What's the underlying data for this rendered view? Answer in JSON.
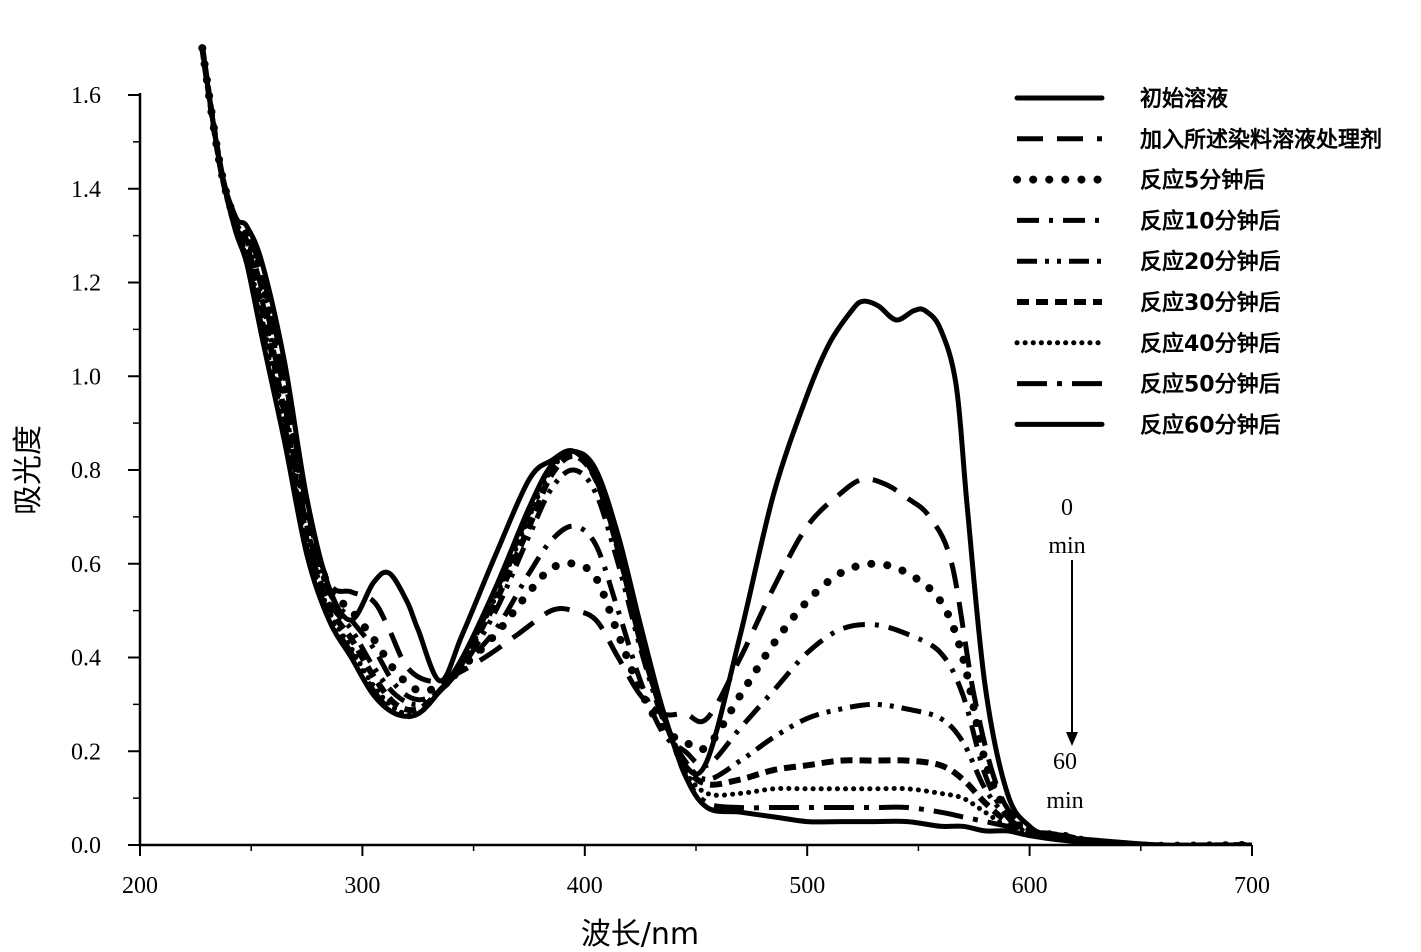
{
  "chart_data": {
    "type": "line",
    "title": "",
    "xlabel": "波长/nm",
    "ylabel": "吸光度",
    "xlim": [
      200,
      700
    ],
    "ylim": [
      0.0,
      1.6
    ],
    "xticks": [
      "200",
      "300",
      "400",
      "500",
      "600",
      "700"
    ],
    "yticks": [
      "0.0",
      "0.2",
      "0.4",
      "0.6",
      "0.8",
      "1.0",
      "1.2",
      "1.4",
      "1.6"
    ],
    "grid": false,
    "legend_position": "top-right",
    "annotations": {
      "top_value": "0",
      "top_unit": "min",
      "bottom_value": "60",
      "bottom_unit": "min"
    },
    "series": [
      {
        "name": "初始溶液",
        "style": "solid",
        "x": [
          228,
          236,
          243,
          248,
          255,
          265,
          275,
          285,
          295,
          305,
          312,
          320,
          325,
          335,
          345,
          360,
          375,
          385,
          395,
          405,
          415,
          425,
          435,
          445,
          455,
          470,
          485,
          500,
          510,
          520,
          525,
          532,
          540,
          548,
          553,
          560,
          567,
          572,
          580,
          590,
          600,
          610,
          630,
          660,
          700
        ],
        "y": [
          1.7,
          1.45,
          1.34,
          1.32,
          1.24,
          1.03,
          0.74,
          0.55,
          0.48,
          0.56,
          0.58,
          0.52,
          0.46,
          0.35,
          0.45,
          0.62,
          0.78,
          0.82,
          0.84,
          0.78,
          0.63,
          0.43,
          0.28,
          0.17,
          0.18,
          0.45,
          0.75,
          0.96,
          1.07,
          1.14,
          1.16,
          1.15,
          1.12,
          1.14,
          1.14,
          1.1,
          0.98,
          0.72,
          0.34,
          0.11,
          0.04,
          0.02,
          0.01,
          0.0,
          0.0
        ]
      },
      {
        "name": "加入所述染料溶液处理剂",
        "style": "dash",
        "x": [
          228,
          236,
          243,
          248,
          255,
          265,
          275,
          285,
          295,
          305,
          312,
          320,
          330,
          340,
          355,
          370,
          385,
          395,
          405,
          415,
          425,
          435,
          445,
          455,
          470,
          485,
          500,
          515,
          525,
          535,
          545,
          555,
          565,
          575,
          585,
          595,
          610,
          640,
          700
        ],
        "y": [
          1.7,
          1.45,
          1.33,
          1.3,
          1.22,
          1.0,
          0.72,
          0.56,
          0.54,
          0.52,
          0.46,
          0.38,
          0.35,
          0.36,
          0.4,
          0.45,
          0.5,
          0.5,
          0.48,
          0.4,
          0.32,
          0.28,
          0.28,
          0.27,
          0.4,
          0.55,
          0.68,
          0.75,
          0.78,
          0.77,
          0.74,
          0.7,
          0.6,
          0.32,
          0.13,
          0.05,
          0.02,
          0.0,
          0.0
        ]
      },
      {
        "name": "反应5分钟后",
        "style": "dot-large",
        "x": [
          228,
          236,
          243,
          248,
          255,
          265,
          275,
          285,
          295,
          305,
          315,
          325,
          335,
          345,
          360,
          375,
          385,
          395,
          405,
          415,
          425,
          435,
          445,
          455,
          470,
          485,
          500,
          515,
          530,
          545,
          560,
          570,
          580,
          590,
          600,
          615,
          640,
          700
        ],
        "y": [
          1.7,
          1.45,
          1.33,
          1.3,
          1.2,
          0.98,
          0.7,
          0.55,
          0.5,
          0.44,
          0.37,
          0.33,
          0.34,
          0.38,
          0.45,
          0.54,
          0.59,
          0.6,
          0.57,
          0.45,
          0.33,
          0.25,
          0.22,
          0.21,
          0.32,
          0.43,
          0.52,
          0.58,
          0.6,
          0.58,
          0.52,
          0.4,
          0.18,
          0.07,
          0.03,
          0.02,
          0.0,
          0.0
        ]
      },
      {
        "name": "反应10分钟后",
        "style": "dash-dot",
        "x": [
          228,
          236,
          243,
          248,
          255,
          265,
          275,
          285,
          295,
          305,
          315,
          325,
          335,
          345,
          360,
          375,
          385,
          395,
          405,
          415,
          425,
          435,
          445,
          455,
          470,
          485,
          500,
          515,
          530,
          545,
          560,
          570,
          580,
          590,
          600,
          615,
          640,
          700
        ],
        "y": [
          1.7,
          1.45,
          1.32,
          1.29,
          1.18,
          0.96,
          0.68,
          0.54,
          0.48,
          0.42,
          0.34,
          0.31,
          0.33,
          0.38,
          0.46,
          0.58,
          0.65,
          0.68,
          0.64,
          0.5,
          0.35,
          0.24,
          0.2,
          0.17,
          0.25,
          0.33,
          0.41,
          0.46,
          0.47,
          0.45,
          0.41,
          0.32,
          0.15,
          0.06,
          0.03,
          0.02,
          0.0,
          0.0
        ]
      },
      {
        "name": "反应20分钟后",
        "style": "dash-dot-dot",
        "x": [
          228,
          236,
          243,
          248,
          255,
          265,
          275,
          285,
          295,
          305,
          315,
          325,
          335,
          345,
          360,
          375,
          385,
          395,
          405,
          415,
          425,
          435,
          445,
          455,
          470,
          485,
          500,
          515,
          530,
          545,
          560,
          570,
          580,
          590,
          600,
          615,
          640,
          700
        ],
        "y": [
          1.7,
          1.45,
          1.32,
          1.28,
          1.16,
          0.94,
          0.66,
          0.52,
          0.46,
          0.38,
          0.32,
          0.3,
          0.33,
          0.38,
          0.5,
          0.66,
          0.76,
          0.8,
          0.75,
          0.6,
          0.42,
          0.27,
          0.18,
          0.14,
          0.18,
          0.23,
          0.27,
          0.29,
          0.3,
          0.29,
          0.27,
          0.22,
          0.12,
          0.06,
          0.03,
          0.02,
          0.0,
          0.0
        ]
      },
      {
        "name": "反应30分钟后",
        "style": "dash-short",
        "x": [
          228,
          236,
          243,
          248,
          255,
          265,
          275,
          285,
          295,
          305,
          315,
          325,
          335,
          345,
          360,
          375,
          385,
          395,
          405,
          415,
          425,
          435,
          445,
          455,
          470,
          485,
          500,
          515,
          530,
          545,
          560,
          570,
          580,
          590,
          600,
          615,
          640,
          700
        ],
        "y": [
          1.7,
          1.45,
          1.32,
          1.27,
          1.14,
          0.92,
          0.65,
          0.51,
          0.44,
          0.36,
          0.3,
          0.29,
          0.33,
          0.39,
          0.52,
          0.68,
          0.79,
          0.83,
          0.78,
          0.63,
          0.44,
          0.28,
          0.17,
          0.13,
          0.14,
          0.16,
          0.17,
          0.18,
          0.18,
          0.18,
          0.17,
          0.14,
          0.09,
          0.05,
          0.03,
          0.02,
          0.0,
          0.0
        ]
      },
      {
        "name": "反应40分钟后",
        "style": "dot-small",
        "x": [
          228,
          236,
          243,
          248,
          255,
          265,
          275,
          285,
          295,
          305,
          315,
          325,
          335,
          345,
          360,
          375,
          385,
          395,
          405,
          415,
          425,
          435,
          445,
          455,
          470,
          485,
          500,
          515,
          530,
          545,
          560,
          570,
          580,
          590,
          600,
          615,
          640,
          700
        ],
        "y": [
          1.7,
          1.45,
          1.31,
          1.26,
          1.12,
          0.9,
          0.64,
          0.5,
          0.42,
          0.34,
          0.29,
          0.28,
          0.33,
          0.39,
          0.53,
          0.7,
          0.8,
          0.84,
          0.79,
          0.64,
          0.45,
          0.28,
          0.16,
          0.11,
          0.11,
          0.12,
          0.12,
          0.12,
          0.12,
          0.12,
          0.11,
          0.1,
          0.07,
          0.04,
          0.03,
          0.02,
          0.0,
          0.0
        ]
      },
      {
        "name": "反应50分钟后",
        "style": "dash-dot-long",
        "x": [
          228,
          236,
          243,
          248,
          255,
          265,
          275,
          285,
          295,
          305,
          315,
          325,
          335,
          345,
          360,
          375,
          385,
          395,
          405,
          415,
          425,
          435,
          445,
          455,
          470,
          485,
          500,
          515,
          530,
          545,
          560,
          570,
          580,
          590,
          600,
          615,
          640,
          700
        ],
        "y": [
          1.7,
          1.45,
          1.31,
          1.25,
          1.1,
          0.88,
          0.63,
          0.49,
          0.41,
          0.33,
          0.28,
          0.28,
          0.33,
          0.39,
          0.54,
          0.71,
          0.81,
          0.84,
          0.8,
          0.65,
          0.46,
          0.29,
          0.15,
          0.09,
          0.08,
          0.08,
          0.08,
          0.08,
          0.08,
          0.08,
          0.07,
          0.06,
          0.05,
          0.04,
          0.03,
          0.02,
          0.0,
          0.0
        ]
      },
      {
        "name": "反应60分钟后",
        "style": "solid",
        "x": [
          228,
          236,
          243,
          248,
          255,
          265,
          275,
          285,
          295,
          305,
          315,
          325,
          335,
          345,
          360,
          375,
          385,
          395,
          405,
          415,
          425,
          435,
          445,
          455,
          470,
          485,
          500,
          515,
          530,
          545,
          560,
          570,
          580,
          590,
          600,
          615,
          640,
          700
        ],
        "y": [
          1.7,
          1.45,
          1.31,
          1.24,
          1.08,
          0.86,
          0.62,
          0.48,
          0.4,
          0.32,
          0.28,
          0.28,
          0.33,
          0.4,
          0.55,
          0.72,
          0.81,
          0.84,
          0.8,
          0.66,
          0.47,
          0.29,
          0.15,
          0.08,
          0.07,
          0.06,
          0.05,
          0.05,
          0.05,
          0.05,
          0.04,
          0.04,
          0.03,
          0.03,
          0.02,
          0.01,
          0.0,
          0.0
        ]
      }
    ]
  }
}
